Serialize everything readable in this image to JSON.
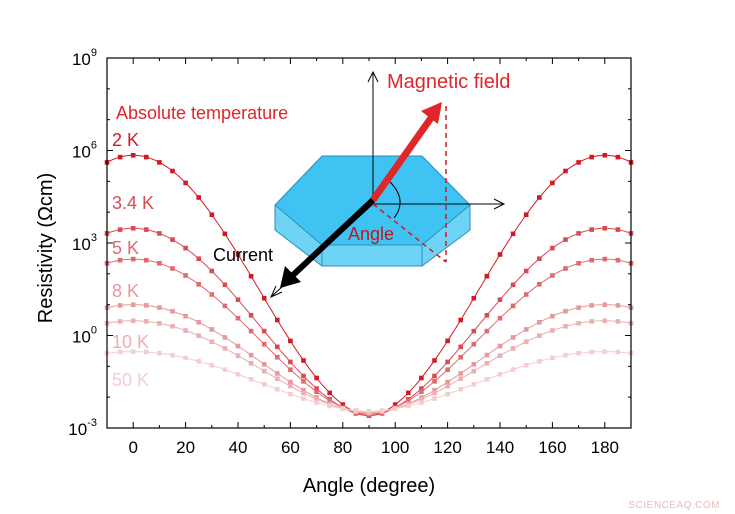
{
  "chart_data": {
    "type": "line",
    "xlabel": "Angle (degree)",
    "ylabel": "Resistivity (Ωcm)",
    "xlim": [
      -10,
      190
    ],
    "ylim_log10": [
      -3,
      9
    ],
    "y_scale": "log",
    "x_ticks": [
      0,
      20,
      40,
      60,
      80,
      100,
      120,
      140,
      160,
      180
    ],
    "y_ticks": [
      {
        "exp": -3,
        "base": "10",
        "sup": "-3"
      },
      {
        "exp": 0,
        "base": "10",
        "sup": "0"
      },
      {
        "exp": 3,
        "base": "10",
        "sup": "3"
      },
      {
        "exp": 6,
        "base": "10",
        "sup": "6"
      },
      {
        "exp": 9,
        "base": "10",
        "sup": "9"
      }
    ],
    "grid": false,
    "legend_title": "Absolute temperature",
    "legend_title_color": "#e0262a",
    "series": [
      {
        "name": "2 K",
        "color": "#d11a24",
        "peak_resistivity": 700000,
        "min_resistivity": 0.0025
      },
      {
        "name": "3.4 K",
        "color": "#d94a52",
        "peak_resistivity": 3000,
        "min_resistivity": 0.0025
      },
      {
        "name": "5 K",
        "color": "#df6a70",
        "peak_resistivity": 300,
        "min_resistivity": 0.0028
      },
      {
        "name": "8 K",
        "color": "#e6999d",
        "peak_resistivity": 10,
        "min_resistivity": 0.003
      },
      {
        "name": "10 K",
        "color": "#edafb2",
        "peak_resistivity": 3,
        "min_resistivity": 0.0032
      },
      {
        "name": "50 K",
        "color": "#f4cdd0",
        "peak_resistivity": 0.3,
        "min_resistivity": 0.0035
      }
    ],
    "inset": {
      "magnetic_field_label": "Magnetic field",
      "magnetic_field_color": "#e0262a",
      "angle_label": "Angle",
      "angle_label_color": "#c0181f",
      "current_label": "Current",
      "crystal_color": "#3ec3f2"
    },
    "watermark": "SCIENCEAQ.COM"
  }
}
